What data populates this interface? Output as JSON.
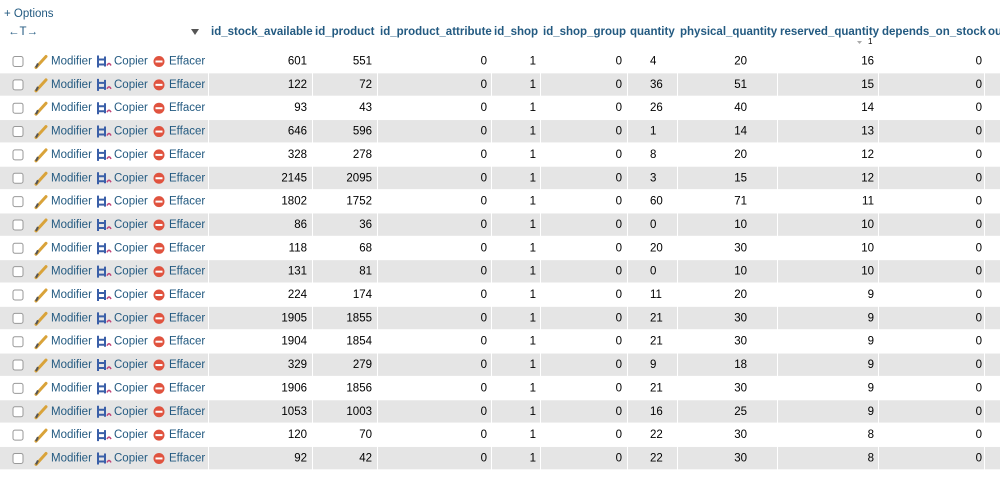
{
  "options_link": "+ Options",
  "header": {
    "arrows": "←T→",
    "columns": [
      "id_stock_available",
      "id_product",
      "id_product_attribute",
      "id_shop",
      "id_shop_group",
      "quantity",
      "physical_quantity",
      "reserved_quantity",
      "depends_on_stock",
      "ou"
    ],
    "sort_order": "1"
  },
  "actions": [
    "Modifier",
    "Copier",
    "Effacer"
  ],
  "rows": [
    [
      601,
      551,
      0,
      1,
      0,
      4,
      20,
      16,
      0
    ],
    [
      122,
      72,
      0,
      1,
      0,
      36,
      51,
      15,
      0
    ],
    [
      93,
      43,
      0,
      1,
      0,
      26,
      40,
      14,
      0
    ],
    [
      646,
      596,
      0,
      1,
      0,
      1,
      14,
      13,
      0
    ],
    [
      328,
      278,
      0,
      1,
      0,
      8,
      20,
      12,
      0
    ],
    [
      2145,
      2095,
      0,
      1,
      0,
      3,
      15,
      12,
      0
    ],
    [
      1802,
      1752,
      0,
      1,
      0,
      60,
      71,
      11,
      0
    ],
    [
      86,
      36,
      0,
      1,
      0,
      0,
      10,
      10,
      0
    ],
    [
      118,
      68,
      0,
      1,
      0,
      20,
      30,
      10,
      0
    ],
    [
      131,
      81,
      0,
      1,
      0,
      0,
      10,
      10,
      0
    ],
    [
      224,
      174,
      0,
      1,
      0,
      11,
      20,
      9,
      0
    ],
    [
      1905,
      1855,
      0,
      1,
      0,
      21,
      30,
      9,
      0
    ],
    [
      1904,
      1854,
      0,
      1,
      0,
      21,
      30,
      9,
      0
    ],
    [
      329,
      279,
      0,
      1,
      0,
      9,
      18,
      9,
      0
    ],
    [
      1906,
      1856,
      0,
      1,
      0,
      21,
      30,
      9,
      0
    ],
    [
      1053,
      1003,
      0,
      1,
      0,
      16,
      25,
      9,
      0
    ],
    [
      120,
      70,
      0,
      1,
      0,
      22,
      30,
      8,
      0
    ],
    [
      92,
      42,
      0,
      1,
      0,
      22,
      30,
      8,
      0
    ]
  ]
}
